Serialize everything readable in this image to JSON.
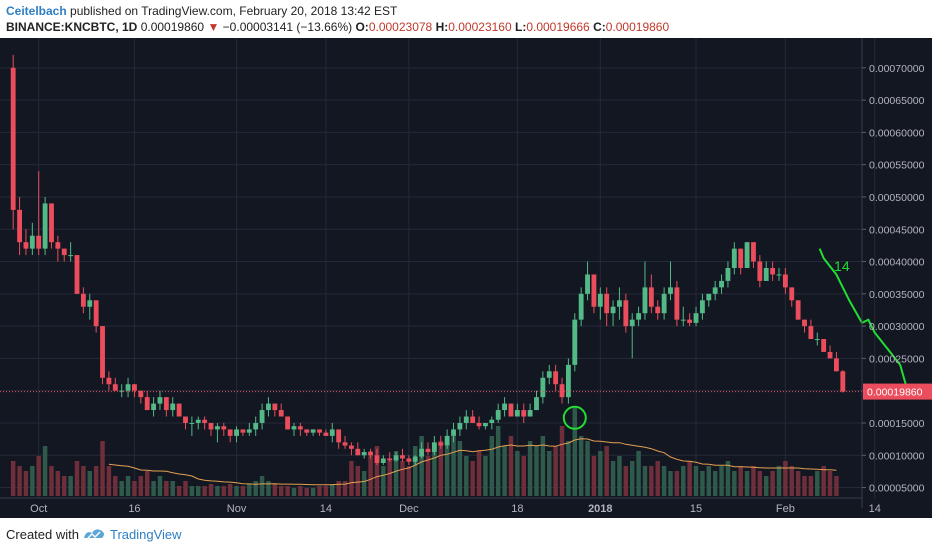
{
  "header": {
    "author": "Ceitelbach",
    "published_text": "published on TradingView.com, February 20, 2018 13:42 EST",
    "symbol": "BINANCE:KNCBTC, 1D",
    "last_price": "0.00019860",
    "change_arrow": "▼",
    "change": "−0.00003141 (−13.66%)",
    "open_label": "O:",
    "open": "0.00023078",
    "high_label": "H:",
    "high": "0.00023160",
    "low_label": "L:",
    "low": "0.00019666",
    "close_label": "C:",
    "close": "0.00019860"
  },
  "footer": {
    "created_with": "Created with",
    "brand": "TradingView"
  },
  "chart_data": {
    "type": "candlestick",
    "price_axis": {
      "min": 4e-05,
      "max": 0.00074,
      "ticks": [
        "0.00005000",
        "0.00010000",
        "0.00015000",
        "0.00020000",
        "0.00025000",
        "0.00030000",
        "0.00035000",
        "0.00040000",
        "0.00045000",
        "0.00050000",
        "0.00055000",
        "0.00060000",
        "0.00065000",
        "0.00070000"
      ],
      "tick_values": [
        5e-05,
        0.0001,
        0.00015,
        0.0002,
        0.00025,
        0.0003,
        0.00035,
        0.0004,
        0.00045,
        0.0005,
        0.00055,
        0.0006,
        0.00065,
        0.0007
      ],
      "current_price_label": "0.00019860",
      "current_price": 0.0001986
    },
    "time_axis": {
      "labels": [
        "Oct",
        "16",
        "Nov",
        "14",
        "Dec",
        "18",
        "2018",
        "15",
        "Feb",
        "14"
      ],
      "label_bar_index": [
        4,
        19,
        35,
        49,
        62,
        79,
        92,
        107,
        121,
        135
      ]
    },
    "colors": {
      "background": "#131722",
      "up": "#53b987",
      "down": "#eb4d5c",
      "volume_up": "#2f5a4b",
      "volume_down": "#6e2f3a",
      "ma": "#e5a050",
      "annotation": "#22dd33",
      "price_line": "#eb4d5c"
    },
    "annotations": {
      "text": "14"
    },
    "ohlc": [
      [
        0.0007,
        0.00072,
        0.00045,
        0.00048
      ],
      [
        0.00048,
        0.0005,
        0.00041,
        0.00043
      ],
      [
        0.00043,
        0.00045,
        0.00041,
        0.00042
      ],
      [
        0.00042,
        0.00046,
        0.00041,
        0.00044
      ],
      [
        0.00044,
        0.00054,
        0.00041,
        0.00042
      ],
      [
        0.00042,
        0.0005,
        0.00041,
        0.00049
      ],
      [
        0.00049,
        0.00049,
        0.00042,
        0.00043
      ],
      [
        0.00043,
        0.00044,
        0.0004,
        0.00042
      ],
      [
        0.00042,
        0.00042,
        0.0004,
        0.00041
      ],
      [
        0.00041,
        0.00043,
        0.0004,
        0.00041
      ],
      [
        0.00041,
        0.00041,
        0.00035,
        0.00035
      ],
      [
        0.00035,
        0.00036,
        0.00032,
        0.00033
      ],
      [
        0.00033,
        0.00035,
        0.00031,
        0.00034
      ],
      [
        0.00034,
        0.00034,
        0.00029,
        0.0003
      ],
      [
        0.0003,
        0.0003,
        0.00021,
        0.00022
      ],
      [
        0.00022,
        0.00023,
        0.0002,
        0.00021
      ],
      [
        0.00021,
        0.00022,
        0.0002,
        0.0002
      ],
      [
        0.0002,
        0.00021,
        0.00019,
        0.0002
      ],
      [
        0.0002,
        0.00022,
        0.00019,
        0.00021
      ],
      [
        0.00021,
        0.00021,
        0.00019,
        0.0002
      ],
      [
        0.0002,
        0.0002,
        0.00018,
        0.00019
      ],
      [
        0.00019,
        0.0002,
        0.00017,
        0.00017
      ],
      [
        0.00017,
        0.00019,
        0.00016,
        0.00018
      ],
      [
        0.00018,
        0.0002,
        0.00017,
        0.00019
      ],
      [
        0.00019,
        0.00019,
        0.00016,
        0.00017
      ],
      [
        0.00017,
        0.00019,
        0.00016,
        0.00018
      ],
      [
        0.00018,
        0.00018,
        0.00016,
        0.00016
      ],
      [
        0.00016,
        0.00016,
        0.00014,
        0.00015
      ],
      [
        0.00015,
        0.00016,
        0.00013,
        0.00015
      ],
      [
        0.00015,
        0.00016,
        0.00014,
        0.000155
      ],
      [
        0.000155,
        0.00016,
        0.00014,
        0.00015
      ],
      [
        0.00015,
        0.00015,
        0.00013,
        0.00014
      ],
      [
        0.00014,
        0.00015,
        0.00012,
        0.000145
      ],
      [
        0.000145,
        0.00015,
        0.00013,
        0.00014
      ],
      [
        0.00014,
        0.00014,
        0.00012,
        0.00013
      ],
      [
        0.00013,
        0.000145,
        0.00012,
        0.00014
      ],
      [
        0.00014,
        0.00014,
        0.00013,
        0.000135
      ],
      [
        0.000135,
        0.00015,
        0.00013,
        0.00014
      ],
      [
        0.00014,
        0.00016,
        0.00013,
        0.00015
      ],
      [
        0.00015,
        0.00018,
        0.00014,
        0.00017
      ],
      [
        0.00017,
        0.00019,
        0.00016,
        0.00018
      ],
      [
        0.00018,
        0.00018,
        0.00016,
        0.00017
      ],
      [
        0.00017,
        0.00018,
        0.00016,
        0.00016
      ],
      [
        0.00016,
        0.00016,
        0.00014,
        0.00014
      ],
      [
        0.00014,
        0.00015,
        0.00013,
        0.000145
      ],
      [
        0.000145,
        0.00015,
        0.00013,
        0.00014
      ],
      [
        0.00014,
        0.00014,
        0.00013,
        0.000135
      ],
      [
        0.000135,
        0.00014,
        0.00013,
        0.00014
      ],
      [
        0.00014,
        0.00014,
        0.00013,
        0.000135
      ],
      [
        0.000135,
        0.00014,
        0.00013,
        0.00013
      ],
      [
        0.00013,
        0.00015,
        0.00012,
        0.00014
      ],
      [
        0.00014,
        0.00014,
        0.00011,
        0.00012
      ],
      [
        0.00012,
        0.00013,
        0.00011,
        0.000115
      ],
      [
        0.000115,
        0.00012,
        0.0001,
        0.00011
      ],
      [
        0.00011,
        0.00012,
        0.0001,
        0.0001
      ],
      [
        0.0001,
        0.00011,
        9.5e-05,
        0.000105
      ],
      [
        0.000105,
        0.00011,
        9.5e-05,
        0.0001
      ],
      [
        0.0001,
        0.00011,
        8.5e-05,
        8.8e-05
      ],
      [
        8.8e-05,
        0.0001,
        8.5e-05,
        9.5e-05
      ],
      [
        9.5e-05,
        0.000105,
        9e-05,
        9.2e-05
      ],
      [
        9.2e-05,
        0.000105,
        9e-05,
        0.0001
      ],
      [
        0.0001,
        0.00011,
        9e-05,
        9.5e-05
      ],
      [
        9.5e-05,
        0.0001,
        8.5e-05,
        9e-05
      ],
      [
        9e-05,
        0.0001,
        8.5e-05,
        9.8e-05
      ],
      [
        9.8e-05,
        0.00012,
        9.5e-05,
        0.00011
      ],
      [
        0.00011,
        0.00012,
        0.0001,
        0.000105
      ],
      [
        0.000105,
        0.00013,
        0.0001,
        0.00012
      ],
      [
        0.00012,
        0.00013,
        0.00011,
        0.000115
      ],
      [
        0.000115,
        0.00014,
        0.00011,
        0.00013
      ],
      [
        0.00013,
        0.00015,
        0.00012,
        0.00014
      ],
      [
        0.00014,
        0.00016,
        0.00013,
        0.00015
      ],
      [
        0.00015,
        0.00017,
        0.00014,
        0.00016
      ],
      [
        0.00016,
        0.00017,
        0.00015,
        0.00015
      ],
      [
        0.00015,
        0.00016,
        0.00014,
        0.000145
      ],
      [
        0.000145,
        0.00015,
        0.00014,
        0.00015
      ],
      [
        0.00015,
        0.00016,
        0.00014,
        0.000155
      ],
      [
        0.000155,
        0.00018,
        0.00015,
        0.00017
      ],
      [
        0.00017,
        0.00019,
        0.00016,
        0.00018
      ],
      [
        0.00018,
        0.00018,
        0.00016,
        0.00016
      ],
      [
        0.00016,
        0.00018,
        0.00016,
        0.00017
      ],
      [
        0.00017,
        0.00018,
        0.00015,
        0.00016
      ],
      [
        0.00016,
        0.00018,
        0.00016,
        0.00017
      ],
      [
        0.00017,
        0.0002,
        0.00017,
        0.00019
      ],
      [
        0.00019,
        0.00023,
        0.00018,
        0.00022
      ],
      [
        0.00022,
        0.00024,
        0.00021,
        0.00023
      ],
      [
        0.00023,
        0.00024,
        0.0002,
        0.00021
      ],
      [
        0.00021,
        0.00022,
        0.00018,
        0.00019
      ],
      [
        0.00019,
        0.00025,
        0.00018,
        0.00024
      ],
      [
        0.00024,
        0.00032,
        0.00023,
        0.00031
      ],
      [
        0.00031,
        0.00036,
        0.0003,
        0.00035
      ],
      [
        0.00035,
        0.0004,
        0.00034,
        0.00038
      ],
      [
        0.00038,
        0.00038,
        0.00032,
        0.00033
      ],
      [
        0.00033,
        0.00036,
        0.00031,
        0.00035
      ],
      [
        0.00035,
        0.00036,
        0.0003,
        0.00032
      ],
      [
        0.00032,
        0.00034,
        0.0003,
        0.00033
      ],
      [
        0.00033,
        0.00036,
        0.00031,
        0.00034
      ],
      [
        0.00034,
        0.00035,
        0.00029,
        0.0003
      ],
      [
        0.0003,
        0.00032,
        0.00025,
        0.00031
      ],
      [
        0.00031,
        0.00033,
        0.0003,
        0.00032
      ],
      [
        0.00032,
        0.0004,
        0.00031,
        0.00036
      ],
      [
        0.00036,
        0.00038,
        0.00032,
        0.00033
      ],
      [
        0.00033,
        0.00034,
        0.00031,
        0.00032
      ],
      [
        0.00032,
        0.00036,
        0.00031,
        0.00035
      ],
      [
        0.00035,
        0.0004,
        0.00034,
        0.00036
      ],
      [
        0.00036,
        0.00037,
        0.0003,
        0.00031
      ],
      [
        0.00031,
        0.00033,
        0.0003,
        0.00031
      ],
      [
        0.00031,
        0.00032,
        0.0003,
        0.000305
      ],
      [
        0.000305,
        0.00033,
        0.0003,
        0.00032
      ],
      [
        0.00032,
        0.00035,
        0.00031,
        0.00034
      ],
      [
        0.00034,
        0.00035,
        0.00033,
        0.00035
      ],
      [
        0.00035,
        0.00037,
        0.00034,
        0.00036
      ],
      [
        0.00036,
        0.00038,
        0.00035,
        0.00037
      ],
      [
        0.00037,
        0.0004,
        0.00036,
        0.00039
      ],
      [
        0.00039,
        0.00043,
        0.00038,
        0.00042
      ],
      [
        0.00042,
        0.00042,
        0.00038,
        0.00039
      ],
      [
        0.00039,
        0.00043,
        0.00039,
        0.00043
      ],
      [
        0.00043,
        0.00043,
        0.00039,
        0.0004
      ],
      [
        0.0004,
        0.00041,
        0.00036,
        0.00037
      ],
      [
        0.00037,
        0.0004,
        0.00037,
        0.00039
      ],
      [
        0.00039,
        0.0004,
        0.00037,
        0.00038
      ],
      [
        0.00038,
        0.00039,
        0.00037,
        0.00038
      ],
      [
        0.00038,
        0.00039,
        0.00035,
        0.00036
      ],
      [
        0.00036,
        0.00036,
        0.00033,
        0.00034
      ],
      [
        0.00034,
        0.00034,
        0.00031,
        0.00031
      ],
      [
        0.00031,
        0.00031,
        0.00029,
        0.0003
      ],
      [
        0.0003,
        0.00031,
        0.00028,
        0.00028
      ],
      [
        0.00028,
        0.00029,
        0.00027,
        0.00028
      ],
      [
        0.00028,
        0.00028,
        0.00026,
        0.00026
      ],
      [
        0.00026,
        0.00027,
        0.00025,
        0.00025
      ],
      [
        0.00025,
        0.00026,
        0.00023,
        0.00023
      ],
      [
        0.00023,
        0.000232,
        0.000197,
        0.0001986
      ]
    ],
    "volume_relative": [
      0.35,
      0.3,
      0.25,
      0.3,
      0.4,
      0.5,
      0.3,
      0.25,
      0.2,
      0.2,
      0.35,
      0.3,
      0.25,
      0.3,
      0.55,
      0.3,
      0.2,
      0.15,
      0.2,
      0.15,
      0.2,
      0.25,
      0.15,
      0.2,
      0.15,
      0.15,
      0.1,
      0.15,
      0.1,
      0.1,
      0.1,
      0.12,
      0.1,
      0.1,
      0.12,
      0.1,
      0.1,
      0.12,
      0.15,
      0.2,
      0.15,
      0.12,
      0.1,
      0.1,
      0.08,
      0.1,
      0.08,
      0.08,
      0.1,
      0.1,
      0.12,
      0.15,
      0.15,
      0.35,
      0.3,
      0.25,
      0.45,
      0.5,
      0.3,
      0.35,
      0.45,
      0.35,
      0.3,
      0.5,
      0.6,
      0.4,
      0.45,
      0.55,
      0.5,
      0.6,
      0.55,
      0.4,
      0.35,
      0.45,
      0.4,
      0.6,
      0.7,
      0.5,
      0.6,
      0.45,
      0.4,
      0.55,
      0.5,
      0.6,
      0.45,
      0.5,
      0.7,
      0.55,
      0.9,
      0.6,
      0.55,
      0.4,
      0.45,
      0.5,
      0.35,
      0.4,
      0.3,
      0.35,
      0.45,
      0.3,
      0.3,
      0.35,
      0.3,
      0.25,
      0.25,
      0.3,
      0.35,
      0.3,
      0.25,
      0.3,
      0.25,
      0.3,
      0.35,
      0.25,
      0.3,
      0.25,
      0.3,
      0.25,
      0.2,
      0.25,
      0.3,
      0.35,
      0.3,
      0.25,
      0.2,
      0.2,
      0.25,
      0.3,
      0.25,
      0.2
    ]
  }
}
